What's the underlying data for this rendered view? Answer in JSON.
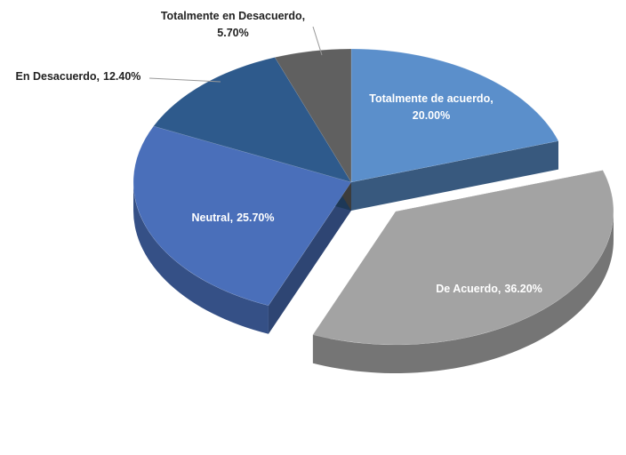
{
  "chart_data": {
    "type": "pie",
    "three_d": true,
    "categories": [
      "Totalmente de acuerdo,",
      "De Acuerdo,",
      "Neutral,",
      "En Desacuerdo,",
      "Totalmente en Desacuerdo,"
    ],
    "values": [
      20.0,
      36.2,
      25.7,
      12.4,
      5.7
    ],
    "value_labels": [
      "20.00%",
      "36.20%",
      "25.70%",
      "12.40%",
      "5.70%"
    ],
    "colors": [
      "#5b8fcb",
      "#a3a3a3",
      "#4a6fba",
      "#2e5a8c",
      "#606060"
    ],
    "exploded": [
      false,
      true,
      false,
      false,
      false
    ]
  }
}
